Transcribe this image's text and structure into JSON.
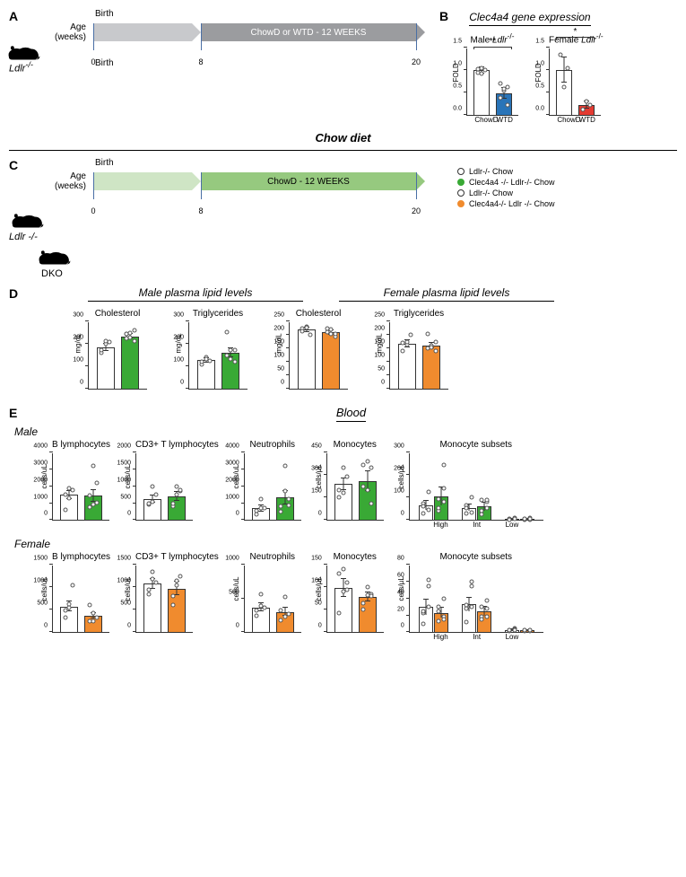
{
  "panelA": {
    "letter": "A",
    "birth_label": "Birth",
    "age_label": "Age\n(weeks)",
    "genotype": "Ldlr-/-",
    "seg1_label": "",
    "seg2_label": "ChowD or WTD - 12 WEEKS",
    "ticks": [
      "0",
      "8",
      "20"
    ],
    "seg1_color": "#c8c9cc",
    "seg2_color": "#9b9c9f",
    "seg2_text_color": "#fff"
  },
  "panelB": {
    "letter": "B",
    "title": "Clec4a4 gene expression",
    "charts": [
      {
        "title": "Male Ldlr-/-",
        "ylabel": "FOLD",
        "ylim": [
          0,
          1.5
        ],
        "ytick_step": 0.5,
        "cats": [
          "ChowD",
          "WTD"
        ],
        "values": [
          1.0,
          0.48
        ],
        "errs": [
          0.07,
          0.12
        ],
        "colors": [
          "#ffffff",
          "#2974b8"
        ],
        "dots": [
          [
            0.95,
            1.05,
            1.0,
            1.02,
            0.92
          ],
          [
            0.7,
            0.55,
            0.22,
            0.38,
            0.58,
            0.62
          ]
        ],
        "sig": "**"
      },
      {
        "title": "Female Ldlr-/-",
        "ylabel": "FOLD",
        "ylim": [
          0,
          1.5
        ],
        "ytick_step": 0.5,
        "cats": [
          "ChowD",
          "WTD"
        ],
        "values": [
          1.0,
          0.22
        ],
        "errs": [
          0.28,
          0.08
        ],
        "colors": [
          "#ffffff",
          "#e43b32"
        ],
        "dots": [
          [
            1.35,
            0.62,
            1.05
          ],
          [
            0.12,
            0.3,
            0.22
          ]
        ],
        "sig": "*"
      }
    ]
  },
  "chow_diet_label": "Chow diet",
  "panelC": {
    "letter": "C",
    "birth_label": "Birth",
    "age_label": "Age\n(weeks)",
    "genotype1": "Ldlr -/-",
    "genotype2": "DKO",
    "seg2_label": "ChowD - 12 WEEKS",
    "ticks": [
      "0",
      "8",
      "20"
    ],
    "seg1_color": "#cfe5c5",
    "seg2_color": "#96c97f",
    "legend": [
      {
        "color": "#ffffff",
        "border": "#333",
        "label": "Ldlr-/- Chow"
      },
      {
        "color": "#39a935",
        "border": "#39a935",
        "label": "Clec4a4 -/- Ldlr-/- Chow"
      },
      {
        "color": "#ffffff",
        "border": "#333",
        "label": "Ldlr-/- Chow"
      },
      {
        "color": "#f08b2e",
        "border": "#f08b2e",
        "label": "Clec4a4-/- Ldlr -/- Chow"
      }
    ]
  },
  "panelD": {
    "letter": "D",
    "male_title": "Male plasma lipid levels",
    "female_title": "Female plasma lipid levels",
    "charts": [
      {
        "t": "Cholesterol",
        "y": "mg/dL",
        "ylim": [
          0,
          300
        ],
        "step": 100,
        "v": [
          185,
          235
        ],
        "e": [
          15,
          10
        ],
        "c": [
          "#fff",
          "#39a935"
        ],
        "d": [
          [
            160,
            200,
            210,
            175,
            215
          ],
          [
            245,
            230,
            260,
            225,
            250,
            215,
            245
          ]
        ]
      },
      {
        "t": "Triglycerides",
        "y": "mg/dL",
        "ylim": [
          0,
          300
        ],
        "step": 100,
        "v": [
          128,
          160
        ],
        "e": [
          10,
          20
        ],
        "c": [
          "#fff",
          "#39a935"
        ],
        "d": [
          [
            110,
            140,
            126,
            120,
            135
          ],
          [
            150,
            175,
            120,
            255,
            135,
            175,
            150
          ]
        ]
      },
      {
        "t": "Cholesterol",
        "y": "mg/dL",
        "ylim": [
          0,
          250
        ],
        "step": 50,
        "v": [
          220,
          210
        ],
        "e": [
          8,
          8
        ],
        "c": [
          "#fff",
          "#f08b2e"
        ],
        "d": [
          [
            225,
            232,
            200,
            215,
            228
          ],
          [
            210,
            220,
            195,
            225,
            205,
            205
          ]
        ]
      },
      {
        "t": "Triglycerides",
        "y": "mg/dL",
        "ylim": [
          0,
          250
        ],
        "step": 50,
        "v": [
          168,
          160
        ],
        "e": [
          12,
          10
        ],
        "c": [
          "#fff",
          "#f08b2e"
        ],
        "d": [
          [
            140,
            165,
            200,
            170,
            175
          ],
          [
            150,
            160,
            175,
            205,
            155,
            140
          ]
        ]
      }
    ]
  },
  "panelE": {
    "letter": "E",
    "title": "Blood",
    "male_label": "Male",
    "female_label": "Female",
    "male_charts": [
      {
        "t": "B lymphocytes",
        "y": "cells/uL",
        "ylim": [
          0,
          4000
        ],
        "step": 1000,
        "v": [
          1500,
          1450
        ],
        "e": [
          250,
          350
        ],
        "c": [
          "#fff",
          "#39a935"
        ],
        "d": [
          [
            600,
            1900,
            1800,
            1500,
            1300
          ],
          [
            750,
            3200,
            1050,
            1450,
            900,
            2200
          ]
        ]
      },
      {
        "t": "CD3+ T lymphocytes",
        "y": "cells/uL",
        "ylim": [
          0,
          2000
        ],
        "step": 500,
        "v": [
          620,
          700
        ],
        "e": [
          100,
          130
        ],
        "c": [
          "#fff",
          "#39a935"
        ],
        "d": [
          [
            450,
            1000,
            750,
            500,
            550
          ],
          [
            420,
            1000,
            850,
            500,
            750,
            900
          ]
        ]
      },
      {
        "t": "Neutrophils",
        "y": "cells/uL",
        "ylim": [
          0,
          4000
        ],
        "step": 1000,
        "v": [
          700,
          1350
        ],
        "e": [
          180,
          400
        ],
        "c": [
          "#fff",
          "#39a935"
        ],
        "d": [
          [
            350,
            1250,
            700,
            550,
            700
          ],
          [
            500,
            3200,
            1250,
            800,
            1700,
            850
          ]
        ]
      },
      {
        "t": "Monocytes",
        "y": "cells/µL",
        "ylim": [
          0,
          450
        ],
        "step": 150,
        "v": [
          240,
          260
        ],
        "e": [
          40,
          65
        ],
        "c": [
          "#fff",
          "#39a935"
        ],
        "d": [
          [
            150,
            350,
            290,
            200,
            185
          ],
          [
            370,
            390,
            110,
            225,
            200,
            350
          ]
        ]
      }
    ],
    "male_subset": {
      "t": "Monocyte subsets",
      "y": "cells/µL",
      "ylim": [
        0,
        300
      ],
      "step": 100,
      "cats": [
        "High",
        "Int",
        "Low"
      ],
      "v": [
        [
          65,
          105
        ],
        [
          55,
          60
        ],
        [
          5,
          5
        ]
      ],
      "e": [
        [
          20,
          40
        ],
        [
          15,
          18
        ],
        [
          2,
          2
        ]
      ],
      "c": [
        "#fff",
        "#39a935"
      ],
      "d": [
        [
          [
            30,
            125,
            75,
            45,
            60
          ],
          [
            40,
            245,
            55,
            80,
            95,
            140
          ]
        ],
        [
          [
            65,
            100,
            30,
            35,
            55
          ],
          [
            40,
            80,
            25,
            55,
            90,
            90
          ]
        ],
        [
          [
            3,
            8,
            4,
            5,
            3
          ],
          [
            3,
            8,
            6,
            2,
            4,
            5
          ]
        ]
      ]
    },
    "female_charts": [
      {
        "t": "B lymphocytes",
        "y": "cells/uL",
        "ylim": [
          0,
          1500
        ],
        "step": 500,
        "v": [
          570,
          370
        ],
        "e": [
          110,
          60
        ],
        "c": [
          "#fff",
          "#f08b2e"
        ],
        "d": [
          [
            320,
            620,
            1050,
            480,
            550
          ],
          [
            250,
            430,
            330,
            600,
            250
          ]
        ]
      },
      {
        "t": "CD3+ T lymphocytes",
        "y": "cells/uL",
        "ylim": [
          0,
          1500
        ],
        "step": 500,
        "v": [
          1080,
          970
        ],
        "e": [
          110,
          150
        ],
        "c": [
          "#fff",
          "#f08b2e"
        ],
        "d": [
          [
            850,
            1350,
            1100,
            950,
            1180
          ],
          [
            600,
            1150,
            1250,
            800,
            1050
          ]
        ]
      },
      {
        "t": "Neutrophils",
        "y": "cells/uL",
        "ylim": [
          0,
          1000
        ],
        "step": 500,
        "v": [
          370,
          300
        ],
        "e": [
          60,
          60
        ],
        "c": [
          "#fff",
          "#f08b2e"
        ],
        "d": [
          [
            250,
            560,
            370,
            320,
            390
          ],
          [
            180,
            520,
            270,
            330,
            230
          ]
        ]
      },
      {
        "t": "Monocytes",
        "y": "cells/µL",
        "ylim": [
          0,
          150
        ],
        "step": 50,
        "v": [
          98,
          78
        ],
        "e": [
          20,
          10
        ],
        "c": [
          "#fff",
          "#f08b2e"
        ],
        "d": [
          [
            42,
            140,
            95,
            130,
            90,
            110
          ],
          [
            50,
            100,
            85,
            65,
            82,
            80
          ]
        ]
      }
    ],
    "female_subset": {
      "t": "Monocyte subsets",
      "y": "cells/µL",
      "ylim": [
        0,
        80
      ],
      "step": 20,
      "cats": [
        "High",
        "Int",
        "Low"
      ],
      "v": [
        [
          30,
          23
        ],
        [
          33,
          25
        ],
        [
          3,
          2
        ]
      ],
      "e": [
        [
          9,
          6
        ],
        [
          8,
          5
        ],
        [
          1,
          1
        ]
      ],
      "c": [
        "#fff",
        "#f08b2e"
      ],
      "d": [
        [
          [
            10,
            55,
            23,
            62,
            25,
            30
          ],
          [
            13,
            40,
            25,
            18,
            30,
            15
          ]
        ],
        [
          [
            12,
            60,
            28,
            55,
            32,
            30
          ],
          [
            18,
            38,
            15,
            28,
            30,
            18
          ]
        ],
        [
          [
            1,
            5,
            3,
            4,
            2,
            3
          ],
          [
            1,
            3,
            2,
            1,
            2,
            2
          ]
        ]
      ]
    }
  }
}
